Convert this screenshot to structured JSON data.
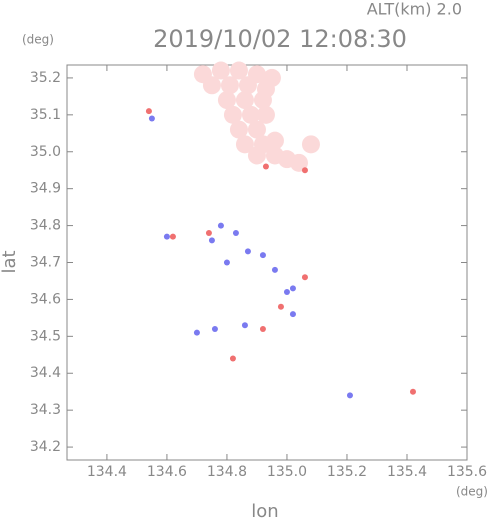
{
  "chart_data": {
    "type": "scatter",
    "title": "2019/10/02 12:08:30",
    "subtitle": "ALT(km) 2.0",
    "y_unit": "(deg)",
    "x_unit": "(deg)",
    "xlabel": "lon",
    "ylabel": "lat",
    "xlim": [
      134.267,
      135.6
    ],
    "ylim": [
      34.165,
      35.235
    ],
    "xticks": [
      134.4,
      134.6,
      134.8,
      {
        "value": 135,
        "label": "135.0"
      },
      135.2,
      135.4,
      135.6
    ],
    "yticks": [
      34.2,
      34.3,
      34.4,
      34.5,
      34.6,
      34.7,
      34.8,
      34.9,
      {
        "value": 35,
        "label": "35.0"
      },
      35.1,
      35.2
    ],
    "series": [
      {
        "color": "#fbd9d9",
        "x": [
          134.72,
          134.78,
          134.84,
          134.9,
          134.95,
          134.75,
          134.81,
          134.87,
          134.93,
          134.8,
          134.86,
          134.92,
          134.82,
          134.88,
          134.93,
          134.84,
          134.9,
          134.86,
          134.92,
          134.9,
          134.96,
          135.0,
          135.04,
          135.08,
          134.96
        ],
        "values": [
          35.21,
          35.22,
          35.22,
          35.21,
          35.2,
          35.18,
          35.18,
          35.18,
          35.17,
          35.14,
          35.14,
          35.14,
          35.1,
          35.1,
          35.1,
          35.06,
          35.06,
          35.02,
          35.02,
          34.99,
          34.99,
          34.98,
          34.97,
          35.02,
          35.03
        ]
      },
      {
        "color": "#f07070",
        "x": [
          134.54,
          134.93,
          135.06,
          135.42,
          134.82,
          134.62,
          134.98,
          135.06,
          134.92,
          134.74
        ],
        "values": [
          35.11,
          34.96,
          34.66,
          34.35,
          34.44,
          34.77,
          34.58,
          34.95,
          34.52,
          34.78
        ]
      },
      {
        "color": "#7a7af0",
        "x": [
          135.21,
          134.75,
          134.8,
          134.87,
          135.0,
          134.86,
          134.7,
          134.78,
          134.83,
          134.92,
          134.96,
          135.02,
          134.76,
          135.02,
          134.6,
          134.55
        ],
        "values": [
          34.34,
          34.76,
          34.7,
          34.73,
          34.62,
          34.53,
          34.51,
          34.8,
          34.78,
          34.72,
          34.68,
          34.63,
          34.52,
          34.56,
          34.77,
          35.09
        ]
      }
    ]
  }
}
